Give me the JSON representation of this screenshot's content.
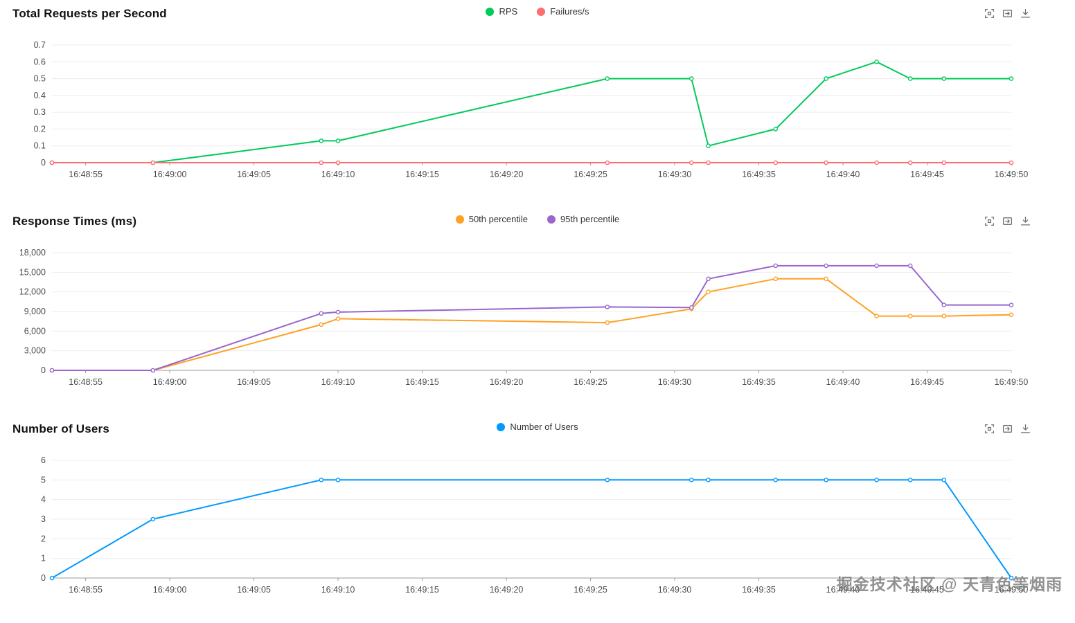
{
  "watermark": {
    "text": "掘金技术社区 @ 天青色等烟雨"
  },
  "toolbox": {
    "tools": [
      "zoom-select",
      "zoom-reset",
      "save-image"
    ]
  },
  "chart_data": [
    {
      "type": "line",
      "title": "Total Requests per Second",
      "legend_position": "top-center",
      "grid": true,
      "x_axis": {
        "min": 53,
        "max": 110,
        "ticks": [
          55,
          60,
          65,
          70,
          75,
          80,
          85,
          90,
          95,
          100,
          105,
          110
        ],
        "tick_labels": [
          "16:48:55",
          "16:49:00",
          "16:49:05",
          "16:49:10",
          "16:49:15",
          "16:49:20",
          "16:49:25",
          "16:49:30",
          "16:49:35",
          "16:49:40",
          "16:49:45",
          "16:49:50"
        ]
      },
      "y_axis": {
        "min": 0,
        "max": 0.7,
        "ticks": [
          0,
          0.1,
          0.2,
          0.3,
          0.4,
          0.5,
          0.6,
          0.7
        ],
        "tick_labels": [
          "0",
          "0.1",
          "0.2",
          "0.3",
          "0.4",
          "0.5",
          "0.6",
          "0.7"
        ]
      },
      "series": [
        {
          "name": "RPS",
          "color": "#00ca5a",
          "points": [
            [
              53,
              0
            ],
            [
              59,
              0
            ],
            [
              69,
              0.13
            ],
            [
              70,
              0.13
            ],
            [
              86,
              0.5
            ],
            [
              91,
              0.5
            ],
            [
              92,
              0.1
            ],
            [
              96,
              0.2
            ],
            [
              99,
              0.5
            ],
            [
              102,
              0.6
            ],
            [
              104,
              0.5
            ],
            [
              106,
              0.5
            ],
            [
              110,
              0.5
            ]
          ]
        },
        {
          "name": "Failures/s",
          "color": "#ff6d6d",
          "points": [
            [
              53,
              0
            ],
            [
              59,
              0
            ],
            [
              69,
              0
            ],
            [
              70,
              0
            ],
            [
              86,
              0
            ],
            [
              91,
              0
            ],
            [
              92,
              0
            ],
            [
              96,
              0
            ],
            [
              99,
              0
            ],
            [
              102,
              0
            ],
            [
              104,
              0
            ],
            [
              106,
              0
            ],
            [
              110,
              0
            ]
          ]
        }
      ]
    },
    {
      "type": "line",
      "title": "Response Times (ms)",
      "legend_position": "top-center",
      "grid": true,
      "x_axis": {
        "min": 53,
        "max": 110,
        "ticks": [
          55,
          60,
          65,
          70,
          75,
          80,
          85,
          90,
          95,
          100,
          105,
          110
        ],
        "tick_labels": [
          "16:48:55",
          "16:49:00",
          "16:49:05",
          "16:49:10",
          "16:49:15",
          "16:49:20",
          "16:49:25",
          "16:49:30",
          "16:49:35",
          "16:49:40",
          "16:49:45",
          "16:49:50"
        ]
      },
      "y_axis": {
        "min": 0,
        "max": 18000,
        "ticks": [
          0,
          3000,
          6000,
          9000,
          12000,
          15000,
          18000
        ],
        "tick_labels": [
          "0",
          "3,000",
          "6,000",
          "9,000",
          "12,000",
          "15,000",
          "18,000"
        ]
      },
      "series": [
        {
          "name": "50th percentile",
          "color": "#ffa022",
          "points": [
            [
              53,
              0
            ],
            [
              59,
              0
            ],
            [
              69,
              7000
            ],
            [
              70,
              7900
            ],
            [
              86,
              7300
            ],
            [
              91,
              9400
            ],
            [
              92,
              12000
            ],
            [
              96,
              14000
            ],
            [
              99,
              14000
            ],
            [
              102,
              8300
            ],
            [
              104,
              8300
            ],
            [
              106,
              8300
            ],
            [
              110,
              8500
            ]
          ]
        },
        {
          "name": "95th percentile",
          "color": "#9966cc",
          "points": [
            [
              53,
              0
            ],
            [
              59,
              0
            ],
            [
              69,
              8700
            ],
            [
              70,
              8900
            ],
            [
              86,
              9700
            ],
            [
              91,
              9600
            ],
            [
              92,
              14000
            ],
            [
              96,
              16000
            ],
            [
              99,
              16000
            ],
            [
              102,
              16000
            ],
            [
              104,
              16000
            ],
            [
              106,
              10000
            ],
            [
              110,
              10000
            ]
          ]
        }
      ]
    },
    {
      "type": "line",
      "title": "Number of Users",
      "legend_position": "top-center",
      "grid": true,
      "x_axis": {
        "min": 53,
        "max": 110,
        "ticks": [
          55,
          60,
          65,
          70,
          75,
          80,
          85,
          90,
          95,
          100,
          105,
          110
        ],
        "tick_labels": [
          "16:48:55",
          "16:49:00",
          "16:49:05",
          "16:49:10",
          "16:49:15",
          "16:49:20",
          "16:49:25",
          "16:49:30",
          "16:49:35",
          "16:49:40",
          "16:49:45",
          "16:49:50"
        ]
      },
      "y_axis": {
        "min": 0,
        "max": 6,
        "ticks": [
          0,
          1,
          2,
          3,
          4,
          5,
          6
        ],
        "tick_labels": [
          "0",
          "1",
          "2",
          "3",
          "4",
          "5",
          "6"
        ]
      },
      "series": [
        {
          "name": "Number of Users",
          "color": "#0099ff",
          "points": [
            [
              53,
              0
            ],
            [
              59,
              3
            ],
            [
              69,
              5
            ],
            [
              70,
              5
            ],
            [
              86,
              5
            ],
            [
              91,
              5
            ],
            [
              92,
              5
            ],
            [
              96,
              5
            ],
            [
              99,
              5
            ],
            [
              102,
              5
            ],
            [
              104,
              5
            ],
            [
              106,
              5
            ],
            [
              110,
              0
            ]
          ]
        }
      ]
    }
  ]
}
